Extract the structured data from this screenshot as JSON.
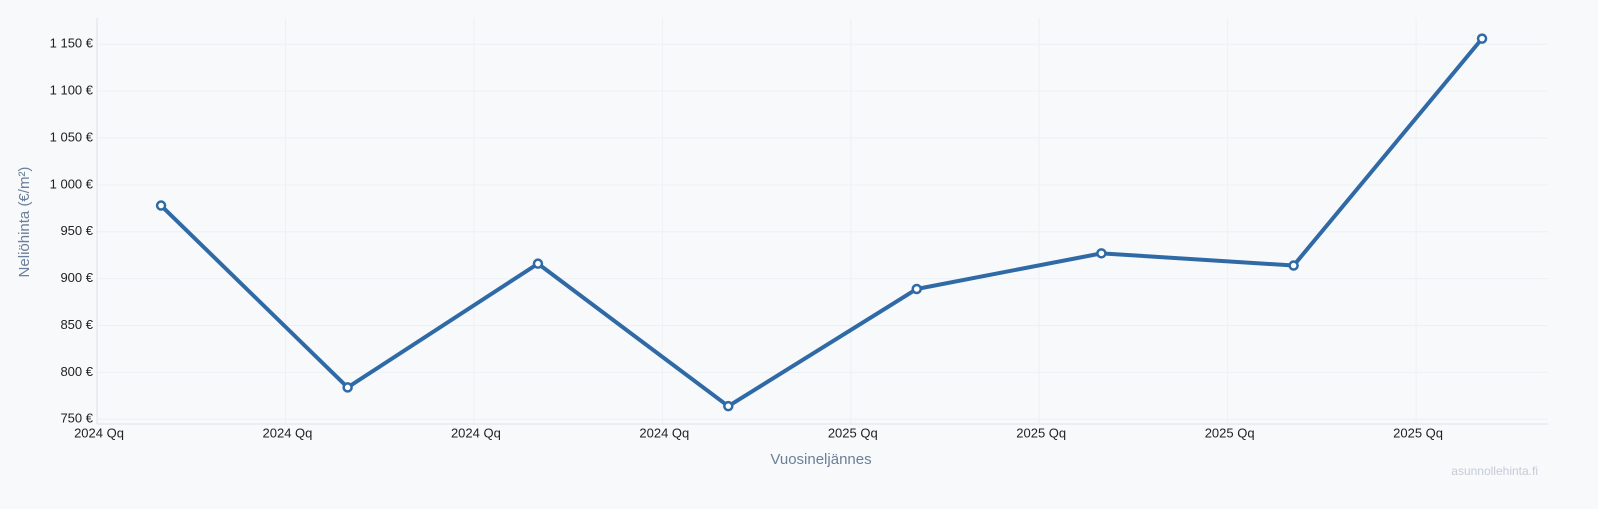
{
  "chart_data": {
    "type": "line",
    "y_label": "Neliöhinta (€/m²)",
    "x_label": "Vuosineljännes",
    "watermark": "asunnollehinta.fi",
    "x": [
      0.34,
      1.33,
      2.34,
      3.35,
      4.35,
      5.33,
      6.35,
      7.35
    ],
    "series": [
      {
        "color": "#2f6aa6",
        "values": [
          978,
          784,
          916,
          764,
          889,
          927,
          914,
          1156
        ]
      }
    ],
    "xlim": [
      0,
      7.7
    ],
    "xticks": [
      {
        "value": 0,
        "label": "2024 Qq"
      },
      {
        "value": 1,
        "label": "2024 Qq"
      },
      {
        "value": 2,
        "label": "2024 Qq"
      },
      {
        "value": 3,
        "label": "2024 Qq"
      },
      {
        "value": 4,
        "label": "2025 Qq"
      },
      {
        "value": 5,
        "label": "2025 Qq"
      },
      {
        "value": 6,
        "label": "2025 Qq"
      },
      {
        "value": 7,
        "label": "2025 Qq"
      }
    ],
    "ylim": [
      745,
      1178
    ],
    "yticks": [
      {
        "value": 750,
        "label": "750 €"
      },
      {
        "value": 800,
        "label": "800 €"
      },
      {
        "value": 850,
        "label": "850 €"
      },
      {
        "value": 900,
        "label": "900 €"
      },
      {
        "value": 950,
        "label": "950 €"
      },
      {
        "value": 1000,
        "label": "1 000 €"
      },
      {
        "value": 1050,
        "label": "1 050 €"
      },
      {
        "value": 1100,
        "label": "1 100 €"
      },
      {
        "value": 1150,
        "label": "1 150 €"
      }
    ],
    "grid": true
  }
}
